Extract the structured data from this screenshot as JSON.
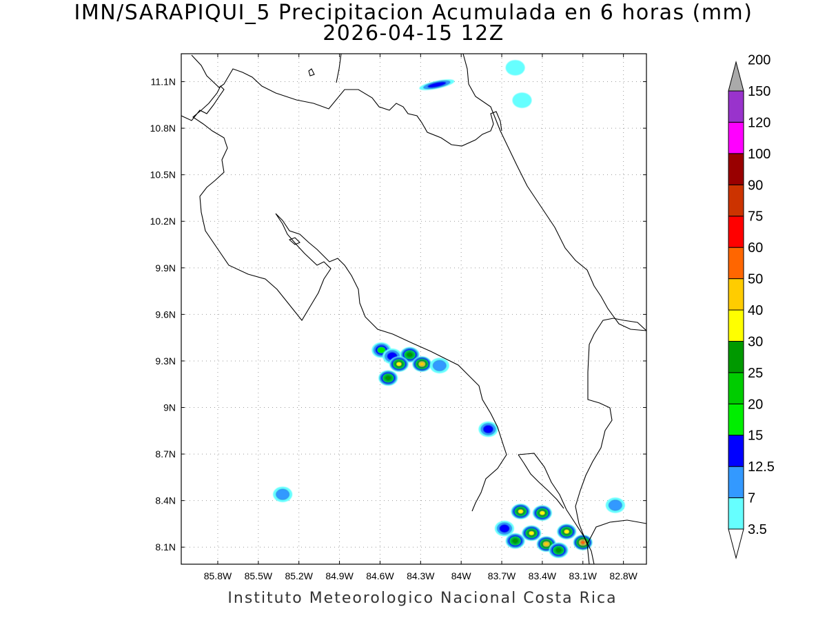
{
  "title": {
    "line1": "IMN/SARAPIQUI_5 Precipitacion Acumulada en 6 horas (mm)",
    "line2": "2026-04-15 12Z"
  },
  "footer": "Instituto Meteorologico Nacional Costa Rica",
  "map": {
    "lon_range": [
      -86.07,
      -82.63
    ],
    "lat_range": [
      7.99,
      11.28
    ],
    "lon_ticks": [
      {
        "value": -85.8,
        "label": "85.8W"
      },
      {
        "value": -85.5,
        "label": "85.5W"
      },
      {
        "value": -85.2,
        "label": "85.2W"
      },
      {
        "value": -84.9,
        "label": "84.9W"
      },
      {
        "value": -84.6,
        "label": "84.6W"
      },
      {
        "value": -84.3,
        "label": "84.3W"
      },
      {
        "value": -84.0,
        "label": "84W"
      },
      {
        "value": -83.7,
        "label": "83.7W"
      },
      {
        "value": -83.4,
        "label": "83.4W"
      },
      {
        "value": -83.1,
        "label": "83.1W"
      },
      {
        "value": -82.8,
        "label": "82.8W"
      }
    ],
    "lat_ticks": [
      {
        "value": 11.1,
        "label": "11.1N"
      },
      {
        "value": 10.8,
        "label": "10.8N"
      },
      {
        "value": 10.5,
        "label": "10.5N"
      },
      {
        "value": 10.2,
        "label": "10.2N"
      },
      {
        "value": 9.9,
        "label": "9.9N"
      },
      {
        "value": 9.6,
        "label": "9.6N"
      },
      {
        "value": 9.3,
        "label": "9.3N"
      },
      {
        "value": 9.0,
        "label": "9N"
      },
      {
        "value": 8.7,
        "label": "8.7N"
      },
      {
        "value": 8.4,
        "label": "8.4N"
      },
      {
        "value": 8.1,
        "label": "8.1N"
      }
    ],
    "grid": "dotted"
  },
  "colorbar": {
    "title": "",
    "levels": [
      "3.5",
      "7",
      "12.5",
      "15",
      "20",
      "25",
      "30",
      "40",
      "50",
      "60",
      "75",
      "90",
      "100",
      "120",
      "150",
      "200"
    ],
    "colors": [
      "#66ffff",
      "#3399ff",
      "#0000ff",
      "#00ee00",
      "#00cc00",
      "#009900",
      "#ffff00",
      "#ffcc00",
      "#ff6600",
      "#ff0000",
      "#cc3300",
      "#990000",
      "#ff00ff",
      "#9933cc",
      "#f2f2f2"
    ],
    "under_color": "#ffffff",
    "over_color": "#aaaaaa"
  },
  "precip_cells": [
    {
      "lon": -84.18,
      "lat": 11.08,
      "mm": 12.5,
      "shape": "streak"
    },
    {
      "lon": -83.6,
      "lat": 11.19,
      "mm": 3.5
    },
    {
      "lon": -83.55,
      "lat": 10.98,
      "mm": 3.5
    },
    {
      "lon": -84.59,
      "lat": 9.37,
      "mm": 15
    },
    {
      "lon": -84.51,
      "lat": 9.33,
      "mm": 12.5
    },
    {
      "lon": -84.38,
      "lat": 9.34,
      "mm": 25
    },
    {
      "lon": -84.46,
      "lat": 9.28,
      "mm": 30
    },
    {
      "lon": -84.29,
      "lat": 9.28,
      "mm": 40
    },
    {
      "lon": -84.54,
      "lat": 9.19,
      "mm": 25
    },
    {
      "lon": -84.16,
      "lat": 9.27,
      "mm": 7
    },
    {
      "lon": -83.8,
      "lat": 8.86,
      "mm": 12.5
    },
    {
      "lon": -85.32,
      "lat": 8.44,
      "mm": 7
    },
    {
      "lon": -83.56,
      "lat": 8.33,
      "mm": 30
    },
    {
      "lon": -83.4,
      "lat": 8.32,
      "mm": 30
    },
    {
      "lon": -83.48,
      "lat": 8.19,
      "mm": 30
    },
    {
      "lon": -83.37,
      "lat": 8.12,
      "mm": 40
    },
    {
      "lon": -83.22,
      "lat": 8.2,
      "mm": 30
    },
    {
      "lon": -83.1,
      "lat": 8.13,
      "mm": 50
    },
    {
      "lon": -83.6,
      "lat": 8.14,
      "mm": 25
    },
    {
      "lon": -83.28,
      "lat": 8.08,
      "mm": 25
    },
    {
      "lon": -83.68,
      "lat": 8.22,
      "mm": 12.5
    },
    {
      "lon": -82.86,
      "lat": 8.37,
      "mm": 7
    }
  ]
}
